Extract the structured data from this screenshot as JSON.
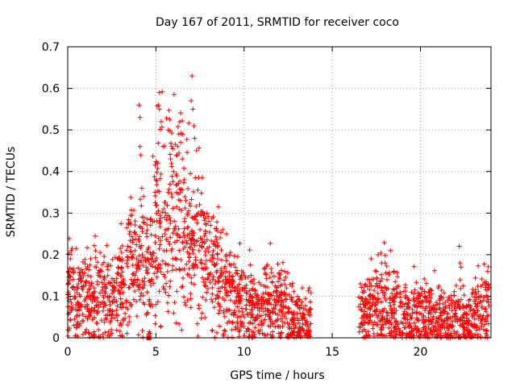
{
  "chart_data": {
    "type": "scatter",
    "title": "Day 167 of 2011, SRMTID for receiver coco",
    "xlabel": "GPS time / hours",
    "ylabel": "SRMTID / TECUs",
    "xlim": [
      0,
      24
    ],
    "ylim": [
      0,
      0.7
    ],
    "xticks": [
      0,
      5,
      10,
      15,
      20
    ],
    "xtick_labels": [
      "0",
      "5",
      "10",
      "15",
      "20"
    ],
    "yticks": [
      0,
      0.1,
      0.2,
      0.3,
      0.4,
      0.5,
      0.6,
      0.7
    ],
    "ytick_labels": [
      "0",
      "0.1",
      "0.2",
      "0.3",
      "0.4",
      "0.5",
      "0.6",
      "0.7"
    ],
    "grid": true,
    "marker": "+",
    "color": "#ff0000",
    "series": [
      {
        "name": "SRMTID",
        "profile": [
          {
            "x": 0.0,
            "y": 0.1
          },
          {
            "x": 0.5,
            "y": 0.1
          },
          {
            "x": 1.0,
            "y": 0.1
          },
          {
            "x": 1.5,
            "y": 0.09
          },
          {
            "x": 2.0,
            "y": 0.09
          },
          {
            "x": 2.5,
            "y": 0.09
          },
          {
            "x": 3.0,
            "y": 0.12
          },
          {
            "x": 3.5,
            "y": 0.17
          },
          {
            "x": 4.0,
            "y": 0.18
          },
          {
            "x": 4.5,
            "y": 0.15
          },
          {
            "x": 5.0,
            "y": 0.27
          },
          {
            "x": 5.5,
            "y": 0.26
          },
          {
            "x": 6.0,
            "y": 0.32
          },
          {
            "x": 6.5,
            "y": 0.33
          },
          {
            "x": 7.0,
            "y": 0.22
          },
          {
            "x": 7.5,
            "y": 0.22
          },
          {
            "x": 8.0,
            "y": 0.18
          },
          {
            "x": 8.5,
            "y": 0.14
          },
          {
            "x": 9.0,
            "y": 0.12
          },
          {
            "x": 9.5,
            "y": 0.1
          },
          {
            "x": 10.0,
            "y": 0.08
          },
          {
            "x": 10.5,
            "y": 0.08
          },
          {
            "x": 11.0,
            "y": 0.08
          },
          {
            "x": 11.5,
            "y": 0.08
          },
          {
            "x": 12.0,
            "y": 0.09
          },
          {
            "x": 12.5,
            "y": 0.06
          },
          {
            "x": 13.0,
            "y": 0.04
          },
          {
            "x": 13.5,
            "y": 0.04
          },
          {
            "x": 13.8,
            "y": 0.04
          },
          {
            "x": 16.5,
            "y": 0.05
          },
          {
            "x": 17.0,
            "y": 0.06
          },
          {
            "x": 17.5,
            "y": 0.07
          },
          {
            "x": 18.0,
            "y": 0.08
          },
          {
            "x": 18.5,
            "y": 0.06
          },
          {
            "x": 19.0,
            "y": 0.05
          },
          {
            "x": 19.5,
            "y": 0.05
          },
          {
            "x": 20.0,
            "y": 0.06
          },
          {
            "x": 20.5,
            "y": 0.05
          },
          {
            "x": 21.0,
            "y": 0.05
          },
          {
            "x": 21.5,
            "y": 0.04
          },
          {
            "x": 22.0,
            "y": 0.05
          },
          {
            "x": 22.5,
            "y": 0.04
          },
          {
            "x": 23.0,
            "y": 0.05
          },
          {
            "x": 23.5,
            "y": 0.07
          },
          {
            "x": 23.9,
            "y": 0.1
          }
        ],
        "points": [
          [
            0.05,
            0.16
          ],
          [
            0.05,
            0.11
          ],
          [
            0.2,
            0.21
          ],
          [
            0.25,
            0.12
          ],
          [
            0.35,
            0.03
          ],
          [
            0.45,
            0.005
          ],
          [
            0.6,
            0.13
          ],
          [
            0.8,
            0.12
          ],
          [
            1.3,
            0.19
          ],
          [
            1.5,
            0.12
          ],
          [
            2.4,
            0.08
          ],
          [
            3.1,
            0.19
          ],
          [
            3.4,
            0.22
          ],
          [
            3.5,
            0.25
          ],
          [
            3.6,
            0.14
          ],
          [
            3.9,
            0.19
          ],
          [
            4.05,
            0.56
          ],
          [
            4.1,
            0.53
          ],
          [
            4.1,
            0.46
          ],
          [
            4.15,
            0.44
          ],
          [
            4.2,
            0.36
          ],
          [
            4.3,
            0.34
          ],
          [
            4.3,
            0.29
          ],
          [
            4.5,
            0.11
          ],
          [
            4.95,
            0.35
          ],
          [
            5.0,
            0.38
          ],
          [
            5.1,
            0.42
          ],
          [
            5.15,
            0.56
          ],
          [
            5.2,
            0.59
          ],
          [
            5.2,
            0.55
          ],
          [
            5.3,
            0.52
          ],
          [
            5.4,
            0.46
          ],
          [
            5.5,
            0.25
          ],
          [
            5.6,
            0.21
          ],
          [
            5.7,
            0.5
          ],
          [
            5.9,
            0.46
          ],
          [
            6.0,
            0.4
          ],
          [
            6.2,
            0.44
          ],
          [
            6.3,
            0.49
          ],
          [
            6.4,
            0.47
          ],
          [
            6.5,
            0.43
          ],
          [
            6.6,
            0.38
          ],
          [
            6.7,
            0.33
          ],
          [
            6.8,
            0.3
          ],
          [
            6.9,
            0.25
          ],
          [
            7.0,
            0.57
          ],
          [
            7.05,
            0.63
          ],
          [
            7.1,
            0.55
          ],
          [
            7.15,
            0.51
          ],
          [
            7.2,
            0.48
          ],
          [
            7.3,
            0.45
          ],
          [
            7.4,
            0.3
          ],
          [
            7.5,
            0.26
          ],
          [
            7.6,
            0.22
          ],
          [
            7.9,
            0.3
          ],
          [
            8.0,
            0.28
          ],
          [
            8.5,
            0.19
          ],
          [
            9.0,
            0.2
          ],
          [
            9.5,
            0.17
          ],
          [
            10.4,
            0.15
          ],
          [
            12.3,
            0.16
          ],
          [
            12.9,
            0.08
          ],
          [
            13.3,
            0.12
          ],
          [
            13.7,
            0.12
          ],
          [
            13.5,
            0.005
          ],
          [
            16.6,
            0.13
          ],
          [
            17.0,
            0.14
          ],
          [
            17.2,
            0.19
          ],
          [
            17.5,
            0.16
          ],
          [
            17.6,
            0.2
          ],
          [
            17.8,
            0.18
          ],
          [
            18.0,
            0.18
          ],
          [
            18.3,
            0.21
          ],
          [
            18.5,
            0.16
          ],
          [
            19.5,
            0.11
          ],
          [
            20.5,
            0.11
          ],
          [
            21.0,
            0.12
          ],
          [
            22.0,
            0.07
          ],
          [
            22.2,
            0.22
          ],
          [
            22.25,
            0.18
          ],
          [
            22.3,
            0.17
          ],
          [
            23.9,
            0.12
          ]
        ]
      }
    ],
    "special_marker": {
      "x": 4.6,
      "y": 0.0,
      "shape": "square"
    }
  }
}
